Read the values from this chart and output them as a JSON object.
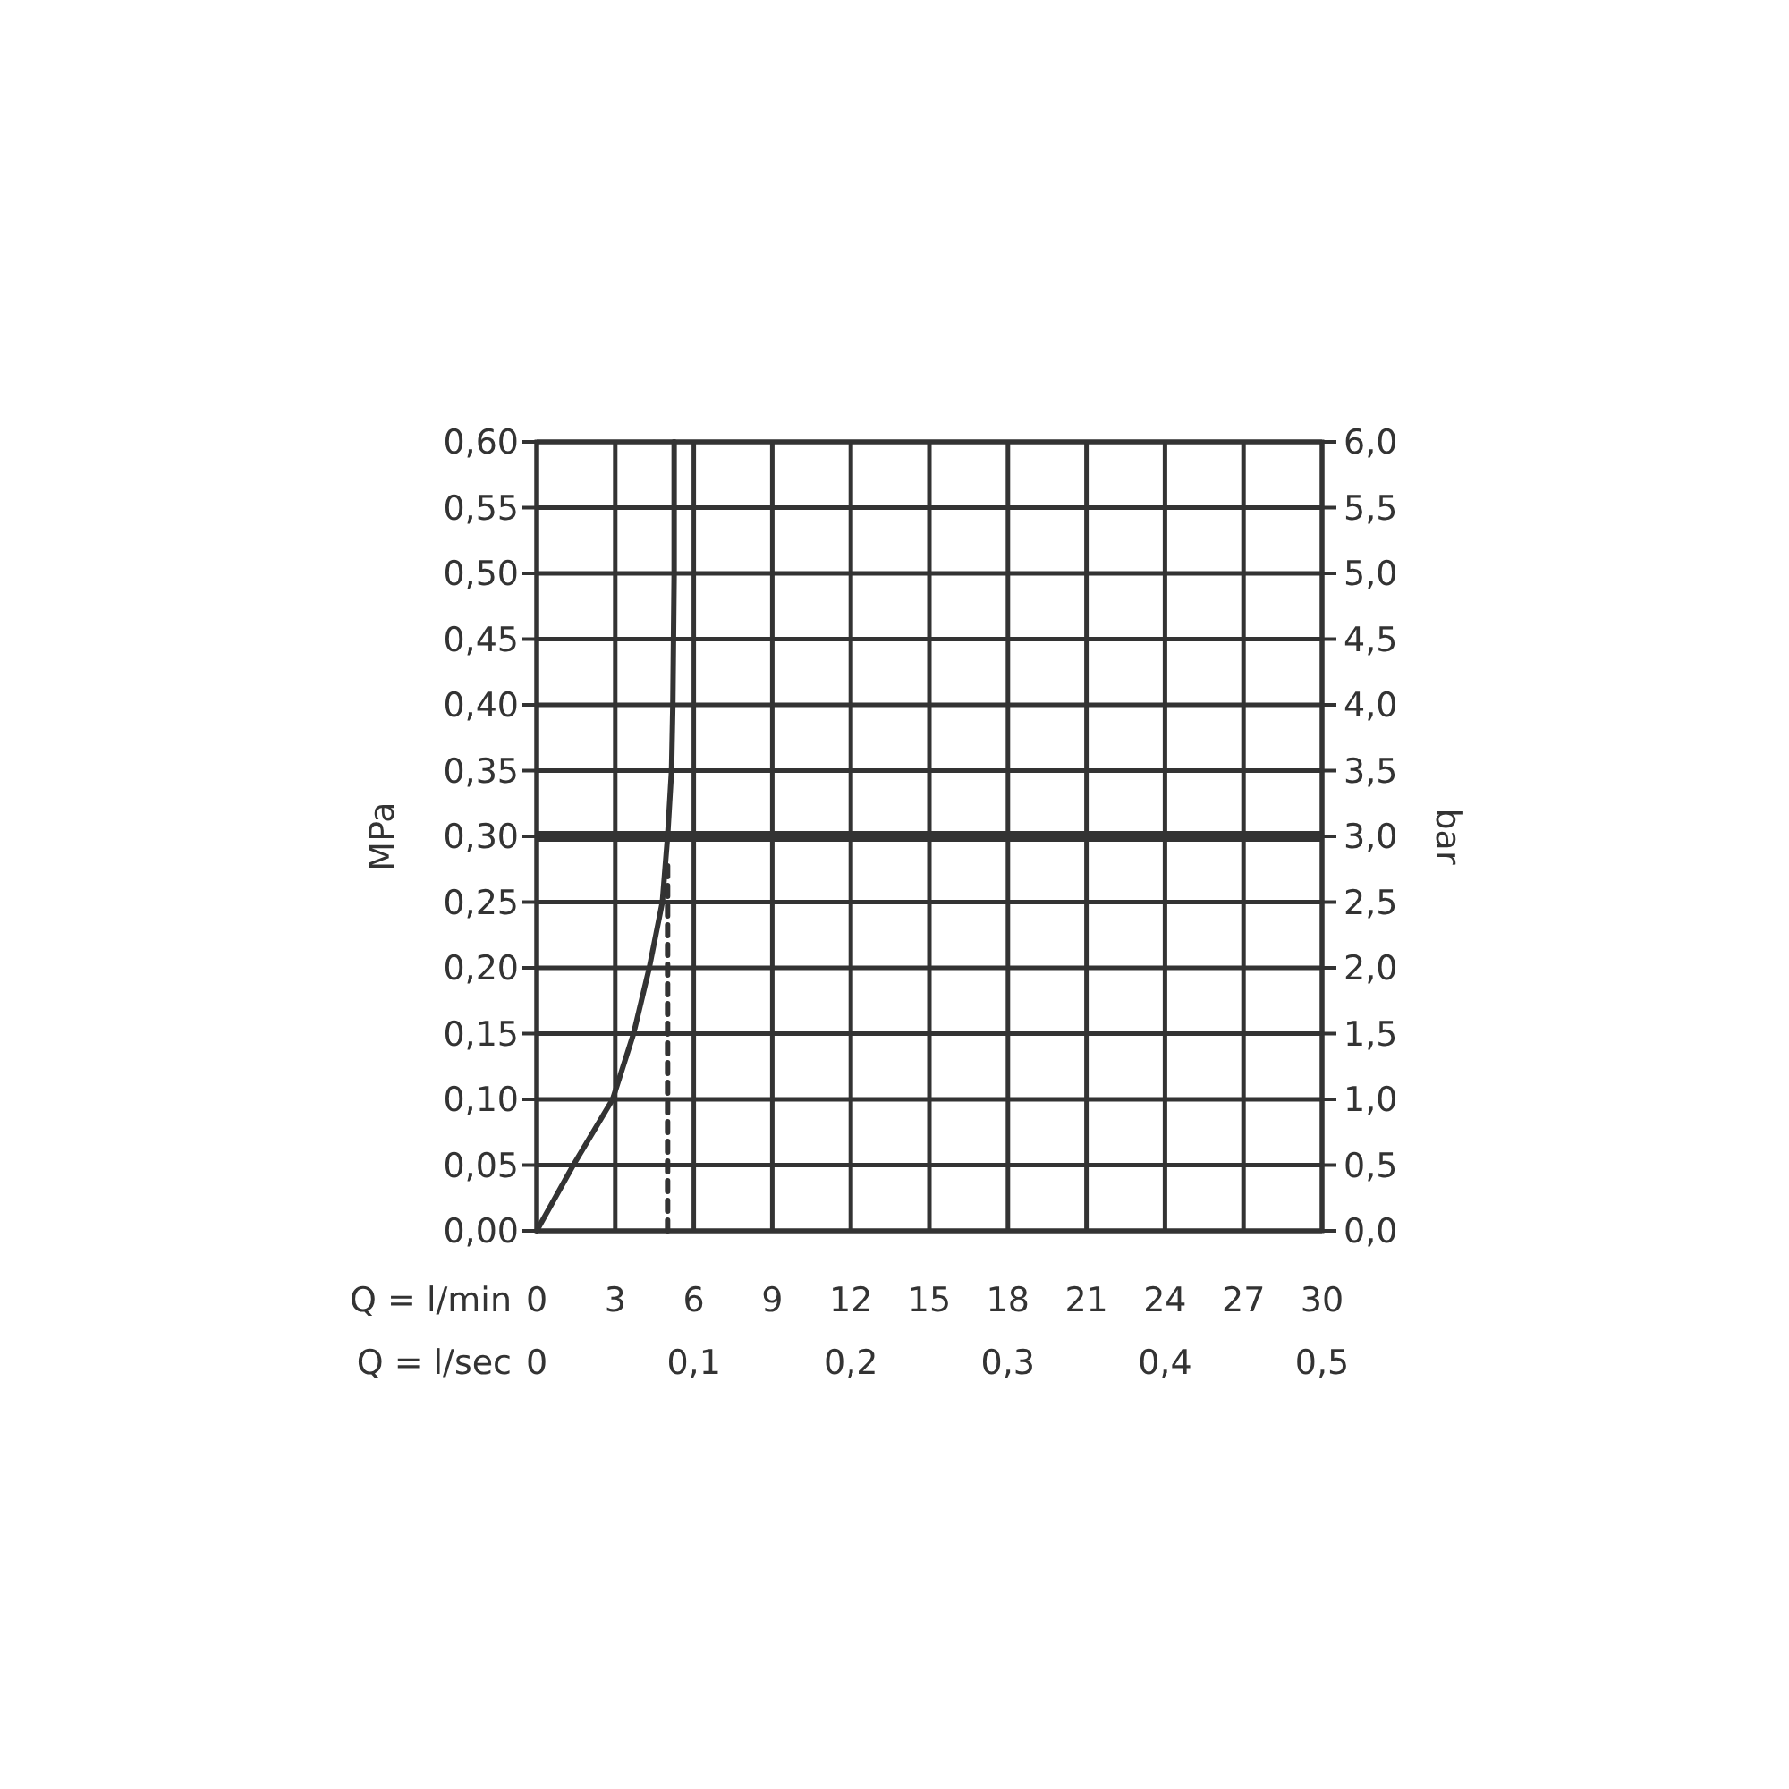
{
  "chart_data": {
    "type": "line",
    "xlabel": "Q = l/min",
    "x2label": "Q = l/sec",
    "ylabel": "MPa",
    "y2label": "bar",
    "xlim": [
      0,
      30
    ],
    "xticks": [
      0,
      3,
      6,
      9,
      12,
      15,
      18,
      21,
      24,
      27,
      30
    ],
    "x2lim": [
      0,
      0.5
    ],
    "x2ticks": [
      0,
      {
        "value": 0.1,
        "label": "0,1"
      },
      {
        "value": 0.2,
        "label": "0,2"
      },
      {
        "value": 0.3,
        "label": "0,3"
      },
      {
        "value": 0.4,
        "label": "0,4"
      },
      {
        "value": 0.5,
        "label": "0,5"
      }
    ],
    "ylim": [
      0,
      0.6
    ],
    "yticks": [
      {
        "value": 0,
        "label": "0,00"
      },
      {
        "value": 0.05,
        "label": "0,05"
      },
      {
        "value": 0.1,
        "label": "0,10"
      },
      {
        "value": 0.15,
        "label": "0,15"
      },
      {
        "value": 0.2,
        "label": "0,20"
      },
      {
        "value": 0.25,
        "label": "0,25"
      },
      {
        "value": 0.3,
        "label": "0,30"
      },
      {
        "value": 0.35,
        "label": "0,35"
      },
      {
        "value": 0.4,
        "label": "0,40"
      },
      {
        "value": 0.45,
        "label": "0,45"
      },
      {
        "value": 0.5,
        "label": "0,50"
      },
      {
        "value": 0.55,
        "label": "0,55"
      },
      {
        "value": 0.6,
        "label": "0,60"
      }
    ],
    "y2lim": [
      0,
      6
    ],
    "y2ticks": [
      {
        "value": 0,
        "label": "0,0"
      },
      {
        "value": 0.5,
        "label": "0,5"
      },
      {
        "value": 1,
        "label": "1,0"
      },
      {
        "value": 1.5,
        "label": "1,5"
      },
      {
        "value": 2,
        "label": "2,0"
      },
      {
        "value": 2.5,
        "label": "2,5"
      },
      {
        "value": 3,
        "label": "3,0"
      },
      {
        "value": 3.5,
        "label": "3,5"
      },
      {
        "value": 4,
        "label": "4,0"
      },
      {
        "value": 4.5,
        "label": "4,5"
      },
      {
        "value": 5,
        "label": "5,0"
      },
      {
        "value": 5.5,
        "label": "5,5"
      },
      {
        "value": 6,
        "label": "6,0"
      }
    ],
    "grid": true,
    "series": [
      {
        "color": "#333333",
        "x": [
          0,
          1.4,
          2.9,
          3.7,
          4.3,
          4.8,
          5.0,
          5.15,
          5.2,
          5.25,
          5.25
        ],
        "values": [
          0,
          0.05,
          0.1,
          0.15,
          0.2,
          0.25,
          0.3,
          0.35,
          0.4,
          0.5,
          0.6
        ],
        "line_style": "solid"
      },
      {
        "color": "#333333",
        "x": [
          5.0,
          5.0
        ],
        "values": [
          0,
          0.28
        ],
        "line_style": "dashed"
      }
    ],
    "ref_lines": [
      {
        "axis": "y",
        "value": 0.3,
        "color": "#333333"
      }
    ]
  }
}
